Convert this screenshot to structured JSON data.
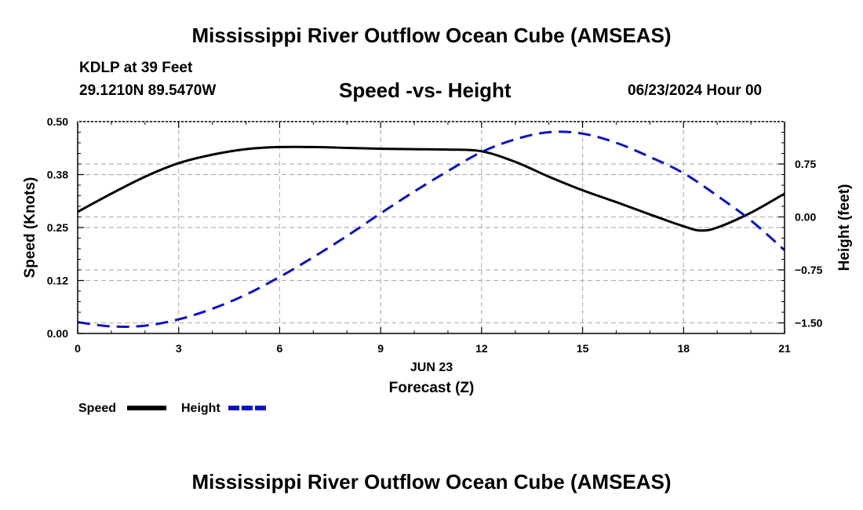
{
  "header": {
    "title": "Mississippi River Outflow Ocean Cube (AMSEAS)",
    "station": "KDLP at 39 Feet",
    "coords": "29.1210N  89.5470W",
    "subtitle": "Speed -vs- Height",
    "datetime": "06/23/2024 Hour 00"
  },
  "footer": {
    "title": "Mississippi River Outflow Ocean Cube (AMSEAS)"
  },
  "chart_data": {
    "type": "line",
    "title": "Speed -vs- Height",
    "xlabel": "Forecast (Z)",
    "xdate_label": "JUN 23",
    "ylabel": "Speed (Knots)",
    "y2label": "Height (feet)",
    "xlim": [
      0,
      21
    ],
    "ylim": [
      0,
      0.5
    ],
    "y2lim": [
      -1.65,
      1.35
    ],
    "x_ticks": [
      0,
      3,
      6,
      9,
      12,
      15,
      18,
      21
    ],
    "x_tick_labels": [
      "0",
      "3",
      "6",
      "9",
      "12",
      "15",
      "18",
      "21"
    ],
    "y_ticks": [
      0,
      0.125,
      0.25,
      0.375,
      0.5
    ],
    "y_tick_labels": [
      "0.00",
      "0.12",
      "0.25",
      "0.38",
      "0.50"
    ],
    "y2_ticks": [
      -1.5,
      -0.75,
      0,
      0.75
    ],
    "y2_tick_labels": [
      "−1.50",
      "−0.75",
      "0.00",
      "0.75"
    ],
    "grid": true,
    "series": [
      {
        "name": "Speed",
        "axis": "left",
        "color": "#000000",
        "dash": "solid",
        "x": [
          0,
          1,
          2,
          3,
          4,
          5,
          6,
          7,
          8,
          9,
          10,
          11,
          12,
          13,
          14,
          15,
          16,
          17,
          18,
          18.5,
          19,
          20,
          21
        ],
        "values": [
          0.287,
          0.33,
          0.37,
          0.402,
          0.422,
          0.435,
          0.44,
          0.44,
          0.438,
          0.436,
          0.435,
          0.434,
          0.43,
          0.405,
          0.37,
          0.338,
          0.31,
          0.281,
          0.253,
          0.243,
          0.25,
          0.285,
          0.33
        ]
      },
      {
        "name": "Height",
        "axis": "right",
        "color": "#0a12c8",
        "dash": "dashed",
        "x": [
          0,
          1,
          2,
          3,
          4,
          5,
          6,
          7,
          8,
          9,
          10,
          11,
          12,
          13,
          14,
          15,
          16,
          17,
          18,
          19,
          20,
          21
        ],
        "values": [
          -1.49,
          -1.55,
          -1.54,
          -1.45,
          -1.3,
          -1.1,
          -0.85,
          -0.57,
          -0.27,
          0.05,
          0.36,
          0.65,
          0.92,
          1.1,
          1.2,
          1.18,
          1.05,
          0.85,
          0.62,
          0.3,
          -0.05,
          -0.47
        ]
      }
    ],
    "legend": [
      {
        "label": "Speed",
        "color": "#000000",
        "dash": "solid"
      },
      {
        "label": "Height",
        "color": "#0a12c8",
        "dash": "dashed"
      }
    ],
    "legend_position": "bottom-left"
  }
}
